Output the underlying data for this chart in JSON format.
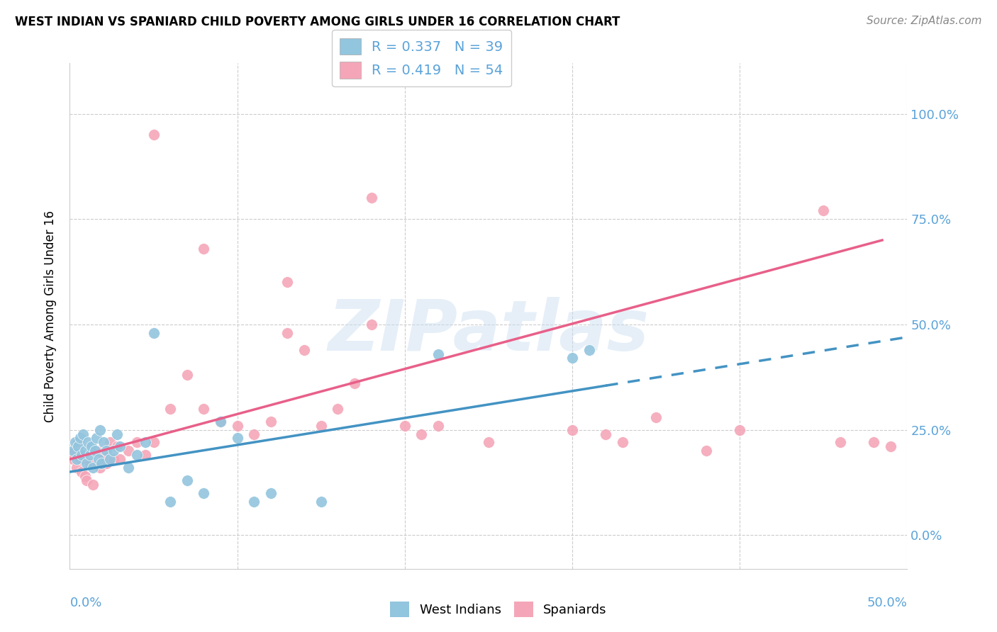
{
  "title": "WEST INDIAN VS SPANIARD CHILD POVERTY AMONG GIRLS UNDER 16 CORRELATION CHART",
  "source": "Source: ZipAtlas.com",
  "ylabel": "Child Poverty Among Girls Under 16",
  "watermark": "ZIPatlas",
  "west_indian_R": 0.337,
  "west_indian_N": 39,
  "spaniard_R": 0.419,
  "spaniard_N": 54,
  "blue_color": "#92c5de",
  "pink_color": "#f4a6b8",
  "blue_line_color": "#4393c3",
  "pink_line_color": "#e8608a",
  "axis_label_color": "#5ba3d9",
  "xlim": [
    0.0,
    0.5
  ],
  "ylim": [
    -0.08,
    1.12
  ],
  "yticks": [
    0.0,
    0.25,
    0.5,
    0.75,
    1.0
  ],
  "ytick_labels": [
    "0.0%",
    "25.0%",
    "50.0%",
    "75.0%",
    "100.0%"
  ],
  "xticks": [
    0.0,
    0.1,
    0.2,
    0.3,
    0.4,
    0.5
  ],
  "blue_line_x0": 0.0,
  "blue_line_y0": 0.15,
  "blue_line_x1": 0.5,
  "blue_line_y1": 0.47,
  "blue_line_solid_end": 0.32,
  "pink_line_x0": 0.0,
  "pink_line_y0": 0.18,
  "pink_line_x1": 0.485,
  "pink_line_y1": 0.7,
  "west_indian_x": [
    0.002,
    0.003,
    0.004,
    0.005,
    0.006,
    0.007,
    0.008,
    0.009,
    0.01,
    0.011,
    0.012,
    0.013,
    0.014,
    0.015,
    0.016,
    0.017,
    0.018,
    0.019,
    0.02,
    0.022,
    0.024,
    0.026,
    0.028,
    0.03,
    0.035,
    0.04,
    0.045,
    0.05,
    0.06,
    0.07,
    0.08,
    0.09,
    0.1,
    0.11,
    0.12,
    0.15,
    0.22,
    0.3,
    0.31
  ],
  "west_indian_y": [
    0.2,
    0.22,
    0.18,
    0.21,
    0.23,
    0.19,
    0.24,
    0.2,
    0.17,
    0.22,
    0.19,
    0.21,
    0.16,
    0.2,
    0.23,
    0.18,
    0.25,
    0.17,
    0.22,
    0.2,
    0.18,
    0.2,
    0.24,
    0.21,
    0.16,
    0.19,
    0.22,
    0.48,
    0.08,
    0.13,
    0.1,
    0.27,
    0.23,
    0.08,
    0.1,
    0.08,
    0.43,
    0.42,
    0.44
  ],
  "spaniard_x": [
    0.002,
    0.003,
    0.004,
    0.005,
    0.006,
    0.007,
    0.008,
    0.009,
    0.01,
    0.012,
    0.014,
    0.016,
    0.018,
    0.02,
    0.022,
    0.024,
    0.026,
    0.028,
    0.03,
    0.035,
    0.04,
    0.045,
    0.05,
    0.06,
    0.07,
    0.08,
    0.09,
    0.1,
    0.11,
    0.12,
    0.13,
    0.14,
    0.15,
    0.16,
    0.17,
    0.18,
    0.2,
    0.21,
    0.22,
    0.25,
    0.3,
    0.32,
    0.35,
    0.38,
    0.4,
    0.45,
    0.46,
    0.48,
    0.49,
    0.05,
    0.08,
    0.13,
    0.18,
    0.33
  ],
  "spaniard_y": [
    0.18,
    0.2,
    0.16,
    0.22,
    0.18,
    0.15,
    0.19,
    0.14,
    0.13,
    0.17,
    0.12,
    0.2,
    0.16,
    0.19,
    0.17,
    0.22,
    0.18,
    0.21,
    0.18,
    0.2,
    0.22,
    0.19,
    0.22,
    0.3,
    0.38,
    0.3,
    0.27,
    0.26,
    0.24,
    0.27,
    0.6,
    0.44,
    0.26,
    0.3,
    0.36,
    0.5,
    0.26,
    0.24,
    0.26,
    0.22,
    0.25,
    0.24,
    0.28,
    0.2,
    0.25,
    0.77,
    0.22,
    0.22,
    0.21,
    0.95,
    0.68,
    0.48,
    0.8,
    0.22
  ]
}
